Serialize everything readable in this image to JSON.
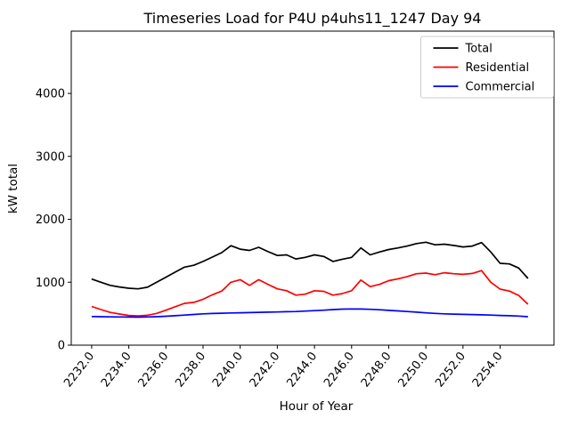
{
  "chart_data": {
    "type": "line",
    "title": "Timeseries Load for P4U p4uhs11_1247  Day 94",
    "xlabel": "Hour of Year",
    "ylabel": "kW total",
    "xlim": [
      2230.9,
      2256.9
    ],
    "ylim": [
      0,
      4990
    ],
    "grid": false,
    "legend_position": "upper right",
    "xticks": [
      2232,
      2234,
      2236,
      2238,
      2240,
      2242,
      2244,
      2246,
      2248,
      2250,
      2252,
      2254
    ],
    "xtick_labels": [
      "2232.0",
      "2234.0",
      "2236.0",
      "2238.0",
      "2240.0",
      "2242.0",
      "2244.0",
      "2246.0",
      "2248.0",
      "2250.0",
      "2252.0",
      "2254.0"
    ],
    "yticks": [
      0,
      1000,
      2000,
      3000,
      4000
    ],
    "ytick_labels": [
      "0",
      "1000",
      "2000",
      "3000",
      "4000"
    ],
    "x": [
      2232,
      2232.5,
      2233,
      2233.5,
      2234,
      2234.5,
      2235,
      2235.5,
      2236,
      2236.5,
      2237,
      2237.5,
      2238,
      2238.5,
      2239,
      2239.5,
      2240,
      2240.5,
      2241,
      2241.5,
      2242,
      2242.5,
      2243,
      2243.5,
      2244,
      2244.5,
      2245,
      2245.5,
      2246,
      2246.5,
      2247,
      2247.5,
      2248,
      2248.5,
      2249,
      2249.5,
      2250,
      2250.5,
      2251,
      2251.5,
      2252,
      2252.5,
      2253,
      2253.5,
      2254,
      2254.5,
      2255,
      2255.5
    ],
    "series": [
      {
        "name": "Total",
        "color": "#000000",
        "values": [
          1050,
          1000,
          950,
          925,
          905,
          895,
          920,
          1000,
          1080,
          1160,
          1240,
          1270,
          1330,
          1400,
          1470,
          1580,
          1525,
          1505,
          1555,
          1485,
          1425,
          1435,
          1370,
          1395,
          1435,
          1410,
          1330,
          1365,
          1395,
          1545,
          1435,
          1480,
          1520,
          1545,
          1575,
          1615,
          1635,
          1595,
          1605,
          1585,
          1560,
          1575,
          1630,
          1480,
          1300,
          1290,
          1225,
          1060
        ]
      },
      {
        "name": "Residential",
        "color": "#ff0000",
        "values": [
          615,
          565,
          520,
          495,
          472,
          465,
          475,
          505,
          555,
          610,
          665,
          680,
          730,
          800,
          860,
          1000,
          1040,
          950,
          1040,
          965,
          895,
          865,
          795,
          810,
          865,
          855,
          795,
          820,
          865,
          1035,
          930,
          965,
          1025,
          1055,
          1090,
          1135,
          1145,
          1120,
          1150,
          1135,
          1125,
          1140,
          1185,
          1000,
          890,
          860,
          790,
          650
        ]
      },
      {
        "name": "Commercial",
        "color": "#0000ff",
        "values": [
          455,
          452,
          450,
          448,
          446,
          445,
          448,
          452,
          460,
          468,
          478,
          487,
          497,
          503,
          508,
          512,
          515,
          518,
          521,
          524,
          527,
          531,
          535,
          541,
          548,
          556,
          565,
          572,
          576,
          574,
          570,
          563,
          553,
          544,
          534,
          524,
          513,
          505,
          498,
          493,
          489,
          486,
          482,
          478,
          472,
          468,
          462,
          452
        ]
      }
    ],
    "style": {
      "spine_color": "#000000",
      "legend_border_color": "#cccccc",
      "background": "#ffffff"
    }
  }
}
